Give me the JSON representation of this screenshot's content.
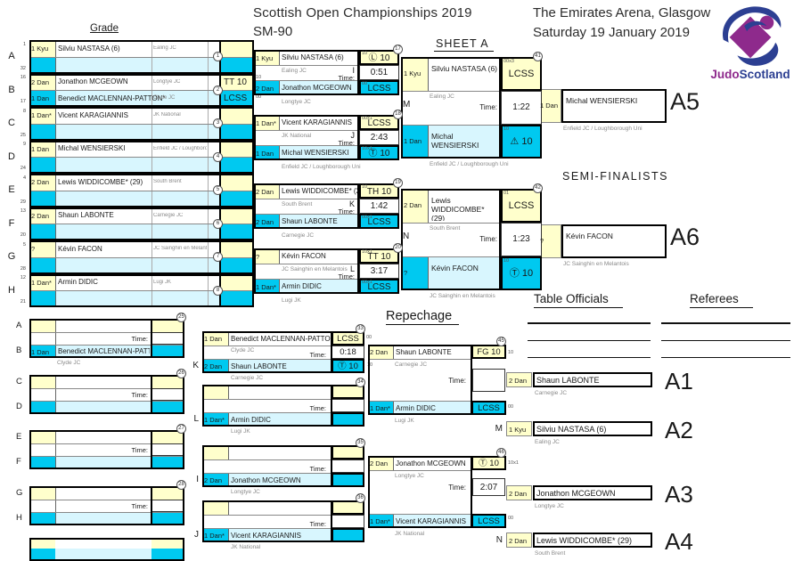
{
  "header": {
    "title": "Scottish Open Championships 2019",
    "category": "SM-90",
    "venue": "The Emirates Arena, Glasgow",
    "date": "Saturday 19 January 2019"
  },
  "logo": {
    "judo": "Judo",
    "scotland": "Scotland"
  },
  "labels": {
    "grade": "Grade",
    "sheet": "SHEET A",
    "semi_finalists": "SEMI-FINALISTS",
    "repechage": "Repechage",
    "table_officials": "Table Officials",
    "referees": "Referees",
    "time": "Time:"
  },
  "colors": {
    "yellow": "#FFFFCC",
    "cyan": "#00C9F0",
    "light_cyan": "#D8F6FE"
  },
  "main_draw": {
    "pairs": [
      {
        "letter": "A",
        "seed_top": "1",
        "seed_bottom": "32",
        "match_no": "1",
        "top": {
          "grade": "1 Kyu",
          "name": "Silviu NASTASA (6)",
          "club": "Ealing JC",
          "result": ""
        },
        "bottom": {
          "grade": "",
          "name": "",
          "club": "",
          "result": ""
        }
      },
      {
        "letter": "B",
        "seed_top": "16",
        "seed_bottom": "17",
        "match_no": "2",
        "top": {
          "grade": "2 Dan",
          "name": "Jonathon MCGEOWN",
          "club": "Longtye JC",
          "result": "TT 10"
        },
        "bottom": {
          "grade": "1 Dan",
          "name": "Benedict MACLENNAN-PATTON*",
          "club": "Clyde JC",
          "result": "LCSS"
        }
      },
      {
        "letter": "C",
        "seed_top": "8",
        "seed_bottom": "25",
        "match_no": "3",
        "top": {
          "grade": "1 Dan*",
          "name": "Vicent KARAGIANNIS",
          "club": "JK National",
          "result": ""
        },
        "bottom": {
          "grade": "",
          "name": "",
          "club": "",
          "result": ""
        }
      },
      {
        "letter": "D",
        "seed_top": "9",
        "seed_bottom": "24",
        "match_no": "4",
        "top": {
          "grade": "1 Dan",
          "name": "Michal WENSIERSKI",
          "club": "Enfield JC / Loughborough Uni",
          "result": ""
        },
        "bottom": {
          "grade": "",
          "name": "",
          "club": "",
          "result": ""
        }
      },
      {
        "letter": "E",
        "seed_top": "4",
        "seed_bottom": "29",
        "match_no": "5",
        "top": {
          "grade": "2 Dan",
          "name": "Lewis WIDDICOMBE* (29)",
          "club": "South Brent",
          "result": ""
        },
        "bottom": {
          "grade": "",
          "name": "",
          "club": "",
          "result": ""
        }
      },
      {
        "letter": "F",
        "seed_top": "13",
        "seed_bottom": "20",
        "match_no": "6",
        "top": {
          "grade": "2 Dan",
          "name": "Shaun LABONTE",
          "club": "Carnegie JC",
          "result": ""
        },
        "bottom": {
          "grade": "",
          "name": "",
          "club": "",
          "result": ""
        }
      },
      {
        "letter": "G",
        "seed_top": "5",
        "seed_bottom": "28",
        "match_no": "7",
        "top": {
          "grade": "?",
          "name": "Kévin FACON",
          "club": "JC Sainghin en Melantois",
          "result": ""
        },
        "bottom": {
          "grade": "",
          "name": "",
          "club": "",
          "result": ""
        }
      },
      {
        "letter": "H",
        "seed_top": "12",
        "seed_bottom": "21",
        "match_no": "8",
        "top": {
          "grade": "1 Dan*",
          "name": "Armin DIDIC",
          "club": "Lugi JK",
          "result": ""
        },
        "bottom": {
          "grade": "",
          "name": "",
          "club": "",
          "result": ""
        }
      }
    ]
  },
  "quarterfinals": [
    {
      "match_no": "17",
      "letter": "I",
      "time": "0:51",
      "club_top": "Ealing JC",
      "club_bottom": "Longtye JC",
      "top": {
        "grade": "1 Kyu",
        "name": "Silviu NASTASA (6)",
        "result": "Ⓛ 10",
        "score": "10"
      },
      "bottom": {
        "grade": "2 Dan",
        "name": "Jonathon MCGEOWN",
        "result": "LCSS",
        "score": "00"
      }
    },
    {
      "match_no": "18",
      "letter": "J",
      "time": "2:43",
      "club_top": "JK National",
      "club_bottom": "Enfield JC / Loughborough Uni",
      "top": {
        "grade": "1 Dan*",
        "name": "Vicent KARAGIANNIS",
        "result": "LCSS",
        "score": "00x1"
      },
      "bottom": {
        "grade": "1 Dan",
        "name": "Michal WENSIERSKI",
        "result": "Ⓣ 10",
        "score": "10x1"
      }
    },
    {
      "match_no": "19",
      "letter": "K",
      "time": "1:42",
      "club_top": "South Brent",
      "club_bottom": "Carnegie JC",
      "top": {
        "grade": "2 Dan",
        "name": "Lewis WIDDICOMBE* (29)",
        "result": "TH 10",
        "score": "10"
      },
      "bottom": {
        "grade": "2 Dan",
        "name": "Shaun LABONTE",
        "result": "LCSS",
        "score": "00x1"
      }
    },
    {
      "match_no": "20",
      "letter": "L",
      "time": "3:17",
      "club_top": "JC Sainghin en Melantois",
      "club_bottom": "Lugi JK",
      "top": {
        "grade": "?",
        "name": "Kévin FACON",
        "result": "TT 10",
        "score": "10x1"
      },
      "bottom": {
        "grade": "1 Dan*",
        "name": "Armin DIDIC",
        "result": "LCSS",
        "score": "00x1"
      }
    }
  ],
  "semifinals": [
    {
      "match_no": "41",
      "letter": "M",
      "time": "1:22",
      "top": {
        "grade": "1 Kyu",
        "name": "Silviu NASTASA (6)",
        "club": "Ealing JC",
        "result": "LCSS",
        "score": "00x3"
      },
      "bottom": {
        "grade": "1 Dan",
        "name": "Michal WENSIERSKI",
        "club": "Enfield JC / Loughborough Uni",
        "result": "⚠ 10",
        "score": "10"
      }
    },
    {
      "match_no": "42",
      "letter": "N",
      "time": "1:23",
      "top": {
        "grade": "2 Dan",
        "name": "Lewis WIDDICOMBE* (29)",
        "club": "South Brent",
        "result": "LCSS",
        "score": "01"
      },
      "bottom": {
        "grade": "?",
        "name": "Kévin FACON",
        "club": "JC Sainghin en Melantois",
        "result": "Ⓣ 10",
        "score": "10"
      }
    }
  ],
  "finalists": [
    {
      "label": "A5",
      "grade": "1 Dan",
      "name": "Michal WENSIERSKI",
      "club": "Enfield JC / Loughborough Uni"
    },
    {
      "label": "A6",
      "grade": "?",
      "name": "Kévin FACON",
      "club": "JC Sainghin en Melantois"
    }
  ],
  "repechage": {
    "left_pairs": [
      {
        "match_no": "25",
        "top_letter": "A",
        "bottom_letter": "B",
        "bottom": {
          "grade": "1 Dan",
          "name": "Benedict MACLENNAN-PATTON*",
          "club": "Clyde JC"
        }
      },
      {
        "match_no": "26",
        "top_letter": "C",
        "bottom_letter": "D",
        "bottom": null
      },
      {
        "match_no": "27",
        "top_letter": "E",
        "bottom_letter": "F",
        "bottom": null
      },
      {
        "match_no": "28",
        "top_letter": "G",
        "bottom_letter": "H",
        "bottom": null
      }
    ],
    "round2": [
      {
        "match_no": "33",
        "letter": "K",
        "time": "0:18",
        "top": {
          "grade": "1 Dan",
          "name": "Benedict MACLENNAN-PATTON*",
          "club": "Clyde JC",
          "result": "LCSS"
        },
        "bottom": {
          "grade": "2 Dan",
          "name": "Shaun LABONTE",
          "club": "Carnegie JC",
          "result": "Ⓣ 10"
        }
      },
      {
        "match_no": "34",
        "letter": "L",
        "time": "",
        "top": null,
        "bottom": {
          "grade": "1 Dan*",
          "name": "Armin DIDIC",
          "club": "Lugi JK",
          "result": ""
        }
      },
      {
        "match_no": "35",
        "letter": "I",
        "time": "",
        "top": null,
        "bottom": {
          "grade": "2 Dan",
          "name": "Jonathon MCGEOWN",
          "club": "Longtye JC",
          "result": ""
        }
      },
      {
        "match_no": "36",
        "letter": "J",
        "time": "",
        "top": null,
        "bottom": {
          "grade": "1 Dan*",
          "name": "Vicent KARAGIANNIS",
          "club": "JK National",
          "result": ""
        }
      }
    ],
    "round3": [
      {
        "match_no": "45",
        "time": "",
        "top": {
          "grade": "2 Dan",
          "name": "Shaun LABONTE",
          "club": "Carnegie JC",
          "result": "FG 10"
        },
        "bottom": {
          "grade": "1 Dan*",
          "name": "Armin DIDIC",
          "club": "Lugi JK",
          "result": "LCSS"
        }
      },
      {
        "match_no": "46",
        "time": "2:07",
        "top": {
          "grade": "2 Dan",
          "name": "Jonathon MCGEOWN",
          "club": "Longtye JC",
          "result": "Ⓣ 10"
        },
        "bottom": {
          "grade": "1 Dan*",
          "name": "Vicent KARAGIANNIS",
          "club": "JK National",
          "result": "LCSS"
        }
      }
    ]
  },
  "placements": [
    {
      "label": "A1",
      "letter": "",
      "grade": "2 Dan",
      "name": "Shaun LABONTE",
      "club": "Carnegie JC"
    },
    {
      "label": "A2",
      "letter": "M",
      "grade": "1 Kyu",
      "name": "Silviu NASTASA (6)",
      "club": "Ealing JC"
    },
    {
      "label": "A3",
      "letter": "",
      "grade": "2 Dan",
      "name": "Jonathon MCGEOWN",
      "club": "Longtye JC"
    },
    {
      "label": "A4",
      "letter": "N",
      "grade": "2 Dan",
      "name": "Lewis WIDDICOMBE* (29)",
      "club": "South Brent"
    }
  ],
  "edge_scores": [
    "10",
    "00",
    "00",
    "10",
    "10",
    "00",
    "10x1",
    "00"
  ]
}
